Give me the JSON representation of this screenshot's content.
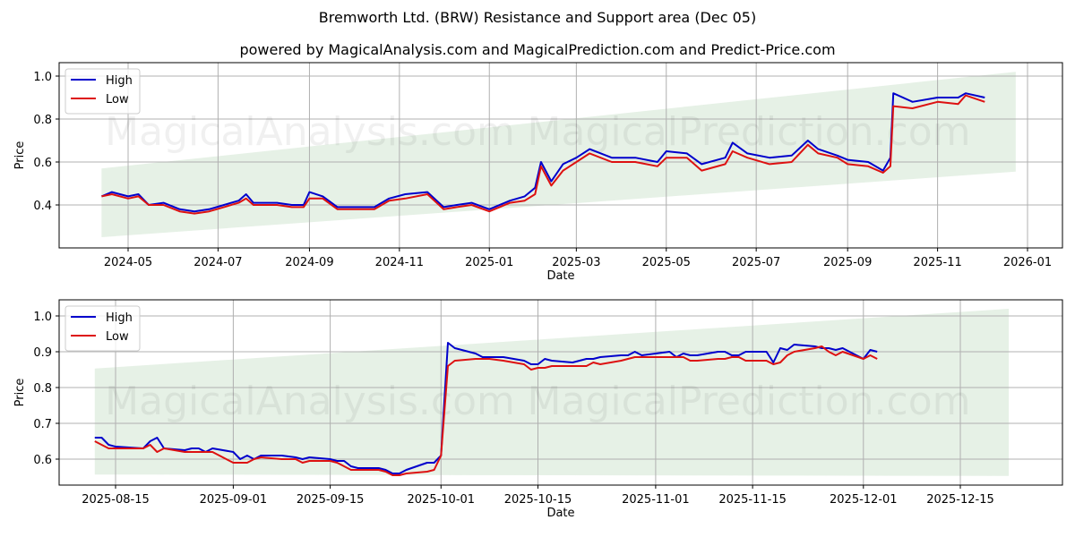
{
  "title": "Bremworth Ltd. (BRW) Resistance and Support area (Dec 05)",
  "subtitle": "powered by MagicalAnalysis.com and MagicalPrediction.com and Predict-Price.com",
  "watermarks": [
    "MagicalAnalysis.com",
    "MagicalPrediction.com"
  ],
  "colors": {
    "high": "#0000cc",
    "low": "#dd1111",
    "band": "#e3efe3",
    "grid": "#b0b0b0"
  },
  "chart_data": [
    {
      "type": "line",
      "title": "Bremworth Ltd. (BRW) Resistance and Support area (Dec 05)",
      "xlabel": "Date",
      "ylabel": "Price",
      "ylim": [
        0.2,
        1.05
      ],
      "grid": true,
      "legend_position": "upper left",
      "legend": [
        "High",
        "Low"
      ],
      "x_ticks": [
        "2024-05",
        "2024-07",
        "2024-09",
        "2024-11",
        "2025-01",
        "2025-03",
        "2025-05",
        "2025-07",
        "2025-09",
        "2025-11",
        "2026-01"
      ],
      "y_ticks": [
        "0.4",
        "0.6",
        "0.8",
        "1.0"
      ],
      "band": {
        "x_start": "2024-04-13",
        "x_end": "2025-12-24",
        "upper": [
          0.57,
          1.02
        ],
        "lower": [
          0.25,
          0.555
        ]
      },
      "x": [
        "2024-04-13",
        "2024-04-20",
        "2024-05-01",
        "2024-05-08",
        "2024-05-15",
        "2024-05-25",
        "2024-06-05",
        "2024-06-15",
        "2024-06-25",
        "2024-07-05",
        "2024-07-15",
        "2024-07-20",
        "2024-07-25",
        "2024-08-10",
        "2024-08-20",
        "2024-08-28",
        "2024-09-01",
        "2024-09-10",
        "2024-09-20",
        "2024-10-01",
        "2024-10-15",
        "2024-10-25",
        "2024-11-05",
        "2024-11-20",
        "2024-12-01",
        "2024-12-10",
        "2024-12-20",
        "2025-01-01",
        "2025-01-15",
        "2025-01-25",
        "2025-02-01",
        "2025-02-05",
        "2025-02-12",
        "2025-02-20",
        "2025-03-01",
        "2025-03-10",
        "2025-03-25",
        "2025-04-10",
        "2025-04-25",
        "2025-05-01",
        "2025-05-15",
        "2025-05-25",
        "2025-06-10",
        "2025-06-15",
        "2025-06-25",
        "2025-07-10",
        "2025-07-25",
        "2025-08-05",
        "2025-08-12",
        "2025-08-25",
        "2025-09-01",
        "2025-09-15",
        "2025-09-25",
        "2025-09-30",
        "2025-10-02",
        "2025-10-15",
        "2025-11-01",
        "2025-11-15",
        "2025-11-20",
        "2025-12-03"
      ],
      "series": [
        {
          "name": "High",
          "values": [
            0.44,
            0.46,
            0.44,
            0.45,
            0.4,
            0.41,
            0.38,
            0.37,
            0.38,
            0.4,
            0.42,
            0.45,
            0.41,
            0.41,
            0.4,
            0.4,
            0.46,
            0.44,
            0.39,
            0.39,
            0.39,
            0.43,
            0.45,
            0.46,
            0.39,
            0.4,
            0.41,
            0.38,
            0.42,
            0.44,
            0.48,
            0.6,
            0.51,
            0.59,
            0.62,
            0.66,
            0.62,
            0.62,
            0.6,
            0.65,
            0.64,
            0.59,
            0.62,
            0.69,
            0.64,
            0.62,
            0.63,
            0.7,
            0.66,
            0.63,
            0.61,
            0.6,
            0.56,
            0.62,
            0.92,
            0.88,
            0.9,
            0.9,
            0.92,
            0.9
          ]
        },
        {
          "name": "Low",
          "values": [
            0.44,
            0.45,
            0.43,
            0.44,
            0.4,
            0.4,
            0.37,
            0.36,
            0.37,
            0.39,
            0.41,
            0.43,
            0.4,
            0.4,
            0.39,
            0.39,
            0.43,
            0.43,
            0.38,
            0.38,
            0.38,
            0.42,
            0.43,
            0.45,
            0.38,
            0.39,
            0.4,
            0.37,
            0.41,
            0.42,
            0.45,
            0.58,
            0.49,
            0.56,
            0.6,
            0.64,
            0.6,
            0.6,
            0.58,
            0.62,
            0.62,
            0.56,
            0.59,
            0.65,
            0.62,
            0.59,
            0.6,
            0.68,
            0.64,
            0.62,
            0.59,
            0.58,
            0.55,
            0.58,
            0.86,
            0.85,
            0.88,
            0.87,
            0.91,
            0.88
          ]
        }
      ]
    },
    {
      "type": "line",
      "xlabel": "Date",
      "ylabel": "Price",
      "ylim": [
        0.53,
        1.045
      ],
      "grid": true,
      "legend_position": "upper left",
      "legend": [
        "High",
        "Low"
      ],
      "x_ticks": [
        "2025-08-15",
        "2025-09-01",
        "2025-09-15",
        "2025-10-01",
        "2025-10-15",
        "2025-11-01",
        "2025-11-15",
        "2025-12-01",
        "2025-12-15"
      ],
      "y_ticks": [
        "0.6",
        "0.7",
        "0.8",
        "0.9",
        "1.0"
      ],
      "band": {
        "x_start": "2025-08-12",
        "x_end": "2025-12-22",
        "upper": [
          0.853,
          1.02
        ],
        "lower": [
          0.557,
          0.553
        ]
      },
      "x": [
        "2025-08-12",
        "2025-08-13",
        "2025-08-14",
        "2025-08-15",
        "2025-08-19",
        "2025-08-20",
        "2025-08-21",
        "2025-08-22",
        "2025-08-25",
        "2025-08-26",
        "2025-08-27",
        "2025-08-28",
        "2025-08-29",
        "2025-09-01",
        "2025-09-02",
        "2025-09-03",
        "2025-09-04",
        "2025-09-05",
        "2025-09-08",
        "2025-09-10",
        "2025-09-11",
        "2025-09-12",
        "2025-09-15",
        "2025-09-16",
        "2025-09-17",
        "2025-09-18",
        "2025-09-19",
        "2025-09-22",
        "2025-09-23",
        "2025-09-24",
        "2025-09-25",
        "2025-09-26",
        "2025-09-29",
        "2025-09-30",
        "2025-10-01",
        "2025-10-02",
        "2025-10-03",
        "2025-10-06",
        "2025-10-07",
        "2025-10-08",
        "2025-10-10",
        "2025-10-13",
        "2025-10-14",
        "2025-10-15",
        "2025-10-16",
        "2025-10-17",
        "2025-10-20",
        "2025-10-21",
        "2025-10-22",
        "2025-10-23",
        "2025-10-24",
        "2025-10-27",
        "2025-10-28",
        "2025-10-29",
        "2025-10-30",
        "2025-11-03",
        "2025-11-04",
        "2025-11-05",
        "2025-11-06",
        "2025-11-07",
        "2025-11-10",
        "2025-11-11",
        "2025-11-12",
        "2025-11-13",
        "2025-11-14",
        "2025-11-17",
        "2025-11-18",
        "2025-11-19",
        "2025-11-20",
        "2025-11-21",
        "2025-11-24",
        "2025-11-25",
        "2025-11-26",
        "2025-11-27",
        "2025-11-28",
        "2025-12-01",
        "2025-12-02",
        "2025-12-03"
      ],
      "series": [
        {
          "name": "High",
          "values": [
            0.66,
            0.66,
            0.64,
            0.635,
            0.63,
            0.65,
            0.66,
            0.63,
            0.625,
            0.63,
            0.63,
            0.62,
            0.63,
            0.62,
            0.6,
            0.61,
            0.6,
            0.61,
            0.61,
            0.605,
            0.6,
            0.605,
            0.6,
            0.595,
            0.595,
            0.58,
            0.575,
            0.575,
            0.57,
            0.56,
            0.56,
            0.57,
            0.59,
            0.59,
            0.61,
            0.925,
            0.91,
            0.895,
            0.885,
            0.885,
            0.885,
            0.875,
            0.865,
            0.865,
            0.88,
            0.875,
            0.87,
            0.875,
            0.88,
            0.88,
            0.885,
            0.89,
            0.89,
            0.9,
            0.89,
            0.9,
            0.885,
            0.895,
            0.89,
            0.89,
            0.9,
            0.9,
            0.89,
            0.89,
            0.9,
            0.9,
            0.87,
            0.91,
            0.905,
            0.92,
            0.915,
            0.91,
            0.91,
            0.905,
            0.91,
            0.88,
            0.905,
            0.9
          ]
        },
        {
          "name": "Low",
          "values": [
            0.65,
            0.64,
            0.63,
            0.63,
            0.63,
            0.64,
            0.62,
            0.63,
            0.62,
            0.62,
            0.62,
            0.62,
            0.62,
            0.59,
            0.59,
            0.59,
            0.6,
            0.605,
            0.6,
            0.6,
            0.59,
            0.595,
            0.595,
            0.59,
            0.58,
            0.57,
            0.57,
            0.57,
            0.565,
            0.555,
            0.555,
            0.56,
            0.565,
            0.57,
            0.61,
            0.86,
            0.875,
            0.88,
            0.88,
            0.88,
            0.875,
            0.865,
            0.85,
            0.855,
            0.855,
            0.86,
            0.86,
            0.86,
            0.86,
            0.87,
            0.865,
            0.875,
            0.88,
            0.885,
            0.885,
            0.885,
            0.885,
            0.885,
            0.875,
            0.875,
            0.88,
            0.88,
            0.885,
            0.885,
            0.875,
            0.875,
            0.865,
            0.87,
            0.89,
            0.9,
            0.91,
            0.915,
            0.9,
            0.89,
            0.9,
            0.88,
            0.89,
            0.88
          ]
        }
      ]
    }
  ]
}
